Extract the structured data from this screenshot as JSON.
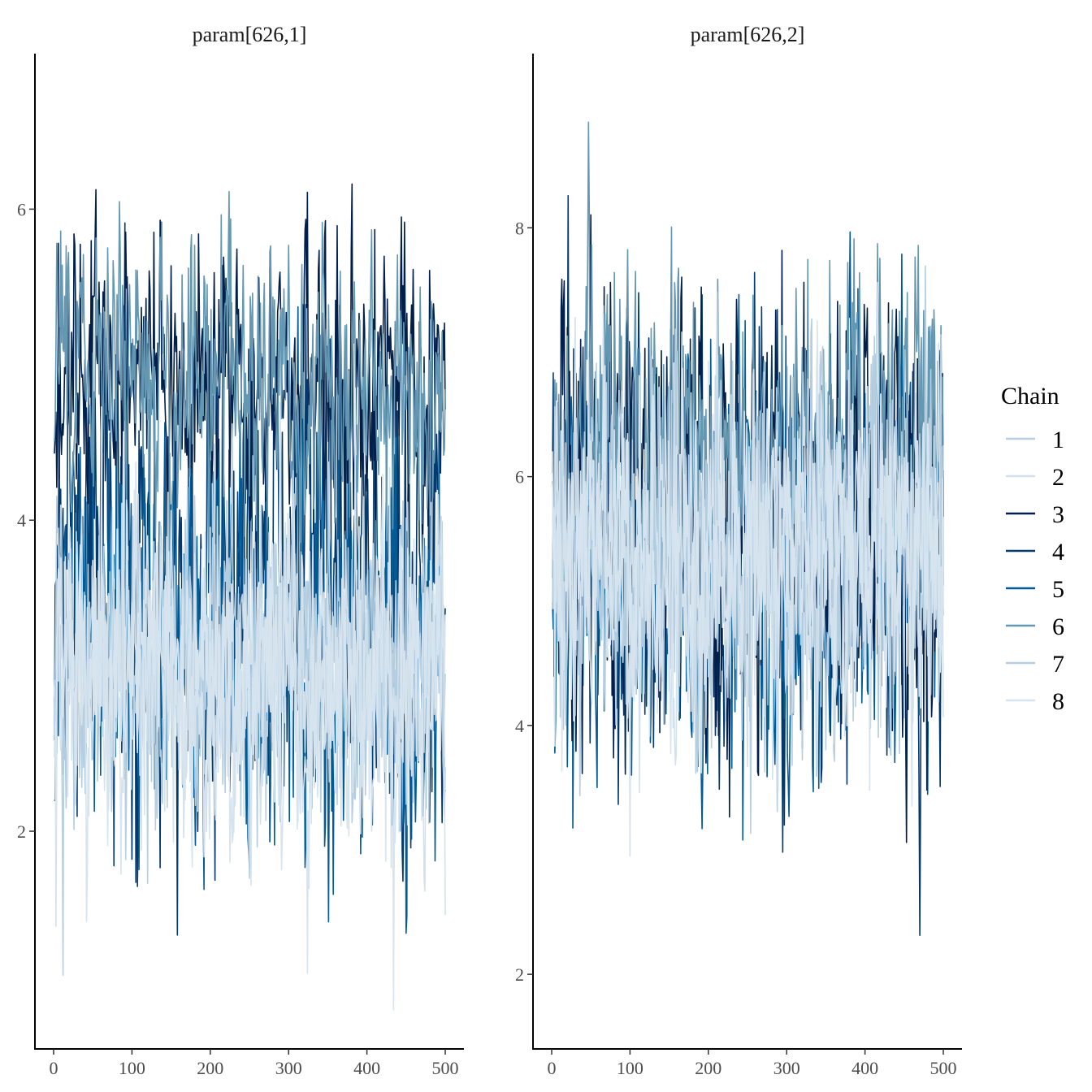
{
  "chart_data": [
    {
      "type": "line",
      "title": "param[626,1]",
      "xlabel": "",
      "ylabel": "",
      "xlim": [
        0,
        500
      ],
      "ylim": [
        0.6,
        7.0
      ],
      "x_ticks": [
        0,
        100,
        200,
        300,
        400,
        500
      ],
      "x_tick_labels": [
        "0",
        "100",
        "200",
        "300",
        "400",
        "500"
      ],
      "y_ticks": [
        2,
        4,
        6
      ],
      "y_tick_labels": [
        "2",
        "4",
        "6"
      ],
      "n_iterations": 500,
      "series": [
        {
          "name": "1",
          "mean": 3.1,
          "sd": 0.45
        },
        {
          "name": "2",
          "mean": 3.0,
          "sd": 0.5
        },
        {
          "name": "3",
          "mean": 4.9,
          "sd": 0.45
        },
        {
          "name": "4",
          "mean": 3.6,
          "sd": 0.8
        },
        {
          "name": "5",
          "mean": 3.2,
          "sd": 0.75
        },
        {
          "name": "6",
          "mean": 4.9,
          "sd": 0.45
        },
        {
          "name": "7",
          "mean": 3.1,
          "sd": 0.45
        },
        {
          "name": "8",
          "mean": 3.0,
          "sd": 0.55
        }
      ]
    },
    {
      "type": "line",
      "title": "param[626,2]",
      "xlabel": "",
      "ylabel": "",
      "xlim": [
        0,
        500
      ],
      "ylim": [
        1.4,
        9.4
      ],
      "x_ticks": [
        0,
        100,
        200,
        300,
        400,
        500
      ],
      "x_tick_labels": [
        "0",
        "100",
        "200",
        "300",
        "400",
        "500"
      ],
      "y_ticks": [
        2,
        4,
        6,
        8
      ],
      "y_tick_labels": [
        "2",
        "4",
        "6",
        "8"
      ],
      "n_iterations": 500,
      "series": [
        {
          "name": "1",
          "mean": 5.3,
          "sd": 0.7
        },
        {
          "name": "2",
          "mean": 5.4,
          "sd": 0.7
        },
        {
          "name": "3",
          "mean": 5.8,
          "sd": 0.9
        },
        {
          "name": "4",
          "mean": 5.5,
          "sd": 0.9
        },
        {
          "name": "5",
          "mean": 5.3,
          "sd": 0.9
        },
        {
          "name": "6",
          "mean": 6.2,
          "sd": 0.7
        },
        {
          "name": "7",
          "mean": 5.3,
          "sd": 0.7
        },
        {
          "name": "8",
          "mean": 5.4,
          "sd": 0.6
        }
      ]
    }
  ],
  "legend": {
    "title": "Chain",
    "items": [
      {
        "label": "1",
        "color": "#b7cfe0"
      },
      {
        "label": "2",
        "color": "#d3e1ec"
      },
      {
        "label": "3",
        "color": "#011f4b"
      },
      {
        "label": "4",
        "color": "#03396c"
      },
      {
        "label": "5",
        "color": "#005b96"
      },
      {
        "label": "6",
        "color": "#6497b1"
      },
      {
        "label": "7",
        "color": "#b3cde0"
      },
      {
        "label": "8",
        "color": "#d6e4ef"
      }
    ]
  },
  "draw_order": [
    "4",
    "5",
    "3",
    "6",
    "1",
    "7",
    "2",
    "8"
  ]
}
